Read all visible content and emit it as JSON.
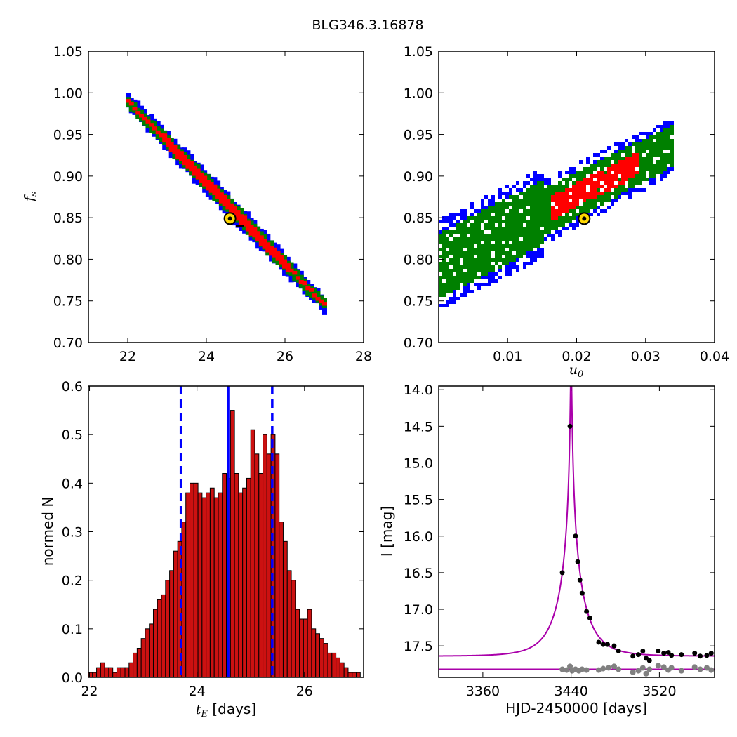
{
  "figure": {
    "title": "BLG346.3.16878"
  },
  "chart_data": [
    {
      "id": "tE_vs_fs",
      "type": "heatmap",
      "xlabel": "",
      "ylabel": "f_s",
      "xlim": [
        21,
        28
      ],
      "ylim": [
        0.7,
        1.05
      ],
      "xticks": [
        "22",
        "24",
        "26",
        "28"
      ],
      "yticks": [
        "0.70",
        "0.75",
        "0.80",
        "0.85",
        "0.90",
        "0.95",
        "1.00",
        "1.05"
      ],
      "colors": {
        "outer": "#0000ff",
        "middle": "#008000",
        "inner": "#ff0000",
        "best_fit": "#ffd700"
      },
      "best_fit": {
        "x": 24.6,
        "y": 0.849
      },
      "region_axis": {
        "start": [
          22.0,
          0.99
        ],
        "end": [
          27.0,
          0.745
        ]
      },
      "region_half_widths": {
        "outer": 0.014,
        "middle": 0.01,
        "inner": 0.0065
      }
    },
    {
      "id": "u0_vs_fs",
      "type": "heatmap",
      "xlabel": "u_0",
      "ylabel": "",
      "xlim": [
        0.0,
        0.04
      ],
      "ylim": [
        0.7,
        1.05
      ],
      "xticks": [
        "0.01",
        "0.02",
        "0.03",
        "0.04"
      ],
      "yticks": [
        "0.70",
        "0.75",
        "0.80",
        "0.85",
        "0.90",
        "0.95",
        "1.00",
        "1.05"
      ],
      "colors": {
        "outer": "#0000ff",
        "middle": "#008000",
        "inner": "#ff0000",
        "best_fit": "#ffd700"
      },
      "best_fit": {
        "x": 0.0211,
        "y": 0.849
      }
    },
    {
      "id": "tE_histogram",
      "type": "bar",
      "xlabel": "t_E [days]",
      "ylabel": "normed N",
      "xlim": [
        21.98,
        27.1
      ],
      "ylim": [
        0.0,
        0.6
      ],
      "xticks": [
        "22",
        "24",
        "26"
      ],
      "yticks": [
        "0.0",
        "0.1",
        "0.2",
        "0.3",
        "0.4",
        "0.5",
        "0.6"
      ],
      "bar_color": "#cc1111",
      "bin_start": 21.98,
      "bin_width": 0.0755,
      "values": [
        0.01,
        0.01,
        0.02,
        0.03,
        0.02,
        0.02,
        0.01,
        0.02,
        0.02,
        0.02,
        0.03,
        0.05,
        0.06,
        0.08,
        0.1,
        0.11,
        0.14,
        0.16,
        0.17,
        0.2,
        0.22,
        0.26,
        0.28,
        0.32,
        0.38,
        0.4,
        0.4,
        0.38,
        0.37,
        0.38,
        0.39,
        0.37,
        0.38,
        0.42,
        0.41,
        0.55,
        0.42,
        0.38,
        0.39,
        0.41,
        0.51,
        0.46,
        0.42,
        0.5,
        0.46,
        0.5,
        0.46,
        0.32,
        0.28,
        0.22,
        0.2,
        0.14,
        0.12,
        0.12,
        0.14,
        0.1,
        0.09,
        0.08,
        0.07,
        0.05,
        0.05,
        0.04,
        0.03,
        0.02,
        0.01,
        0.01,
        0.01
      ],
      "vlines": [
        {
          "x": 24.58,
          "style": "solid",
          "color": "#0000ff"
        },
        {
          "x": 23.7,
          "style": "dashed",
          "color": "#0000ff"
        },
        {
          "x": 25.4,
          "style": "dashed",
          "color": "#0000ff"
        }
      ]
    },
    {
      "id": "light_curve",
      "type": "scatter",
      "xlabel": "HJD-2450000 [days]",
      "ylabel": "I [mag]",
      "xlim": [
        3320,
        3570
      ],
      "ylim": [
        17.93,
        13.95
      ],
      "xticks": [
        "3360",
        "3440",
        "3520"
      ],
      "yticks": [
        "14.0",
        "14.5",
        "15.0",
        "15.5",
        "16.0",
        "16.5",
        "17.0",
        "17.5"
      ],
      "model_color": "#aa00aa",
      "model": {
        "t0": 3440,
        "u0": 0.0211,
        "tE": 24.6,
        "fs": 0.849,
        "Ibase": 17.64
      },
      "baseline_line": 17.82,
      "points": [
        {
          "x": 3439,
          "y": 14.5
        },
        {
          "x": 3432,
          "y": 16.5
        },
        {
          "x": 3444,
          "y": 16.0
        },
        {
          "x": 3446,
          "y": 16.35
        },
        {
          "x": 3448,
          "y": 16.6
        },
        {
          "x": 3450,
          "y": 16.78
        },
        {
          "x": 3454,
          "y": 17.03
        },
        {
          "x": 3457,
          "y": 17.12
        },
        {
          "x": 3465,
          "y": 17.45
        },
        {
          "x": 3469,
          "y": 17.48
        },
        {
          "x": 3473,
          "y": 17.48
        },
        {
          "x": 3479,
          "y": 17.5
        },
        {
          "x": 3483,
          "y": 17.57
        },
        {
          "x": 3496,
          "y": 17.64
        },
        {
          "x": 3501,
          "y": 17.62
        },
        {
          "x": 3505,
          "y": 17.57
        },
        {
          "x": 3508,
          "y": 17.67
        },
        {
          "x": 3511,
          "y": 17.7
        },
        {
          "x": 3519,
          "y": 17.57
        },
        {
          "x": 3524,
          "y": 17.6
        },
        {
          "x": 3528,
          "y": 17.59
        },
        {
          "x": 3531,
          "y": 17.63
        },
        {
          "x": 3540,
          "y": 17.62
        },
        {
          "x": 3552,
          "y": 17.6
        },
        {
          "x": 3557,
          "y": 17.64
        },
        {
          "x": 3563,
          "y": 17.63
        },
        {
          "x": 3567,
          "y": 17.6
        }
      ],
      "residuals": [
        {
          "x": 3432,
          "y": 17.82
        },
        {
          "x": 3436,
          "y": 17.83
        },
        {
          "x": 3439,
          "y": 17.78
        },
        {
          "x": 3441,
          "y": 17.84
        },
        {
          "x": 3444,
          "y": 17.82
        },
        {
          "x": 3447,
          "y": 17.84
        },
        {
          "x": 3450,
          "y": 17.82
        },
        {
          "x": 3454,
          "y": 17.83
        },
        {
          "x": 3465,
          "y": 17.83
        },
        {
          "x": 3469,
          "y": 17.81
        },
        {
          "x": 3474,
          "y": 17.8
        },
        {
          "x": 3479,
          "y": 17.78
        },
        {
          "x": 3483,
          "y": 17.82
        },
        {
          "x": 3496,
          "y": 17.86
        },
        {
          "x": 3501,
          "y": 17.84
        },
        {
          "x": 3505,
          "y": 17.8
        },
        {
          "x": 3508,
          "y": 17.88
        },
        {
          "x": 3511,
          "y": 17.82
        },
        {
          "x": 3519,
          "y": 17.77
        },
        {
          "x": 3524,
          "y": 17.79
        },
        {
          "x": 3528,
          "y": 17.83
        },
        {
          "x": 3531,
          "y": 17.8
        },
        {
          "x": 3540,
          "y": 17.84
        },
        {
          "x": 3552,
          "y": 17.79
        },
        {
          "x": 3557,
          "y": 17.82
        },
        {
          "x": 3563,
          "y": 17.8
        },
        {
          "x": 3567,
          "y": 17.83
        }
      ]
    }
  ]
}
